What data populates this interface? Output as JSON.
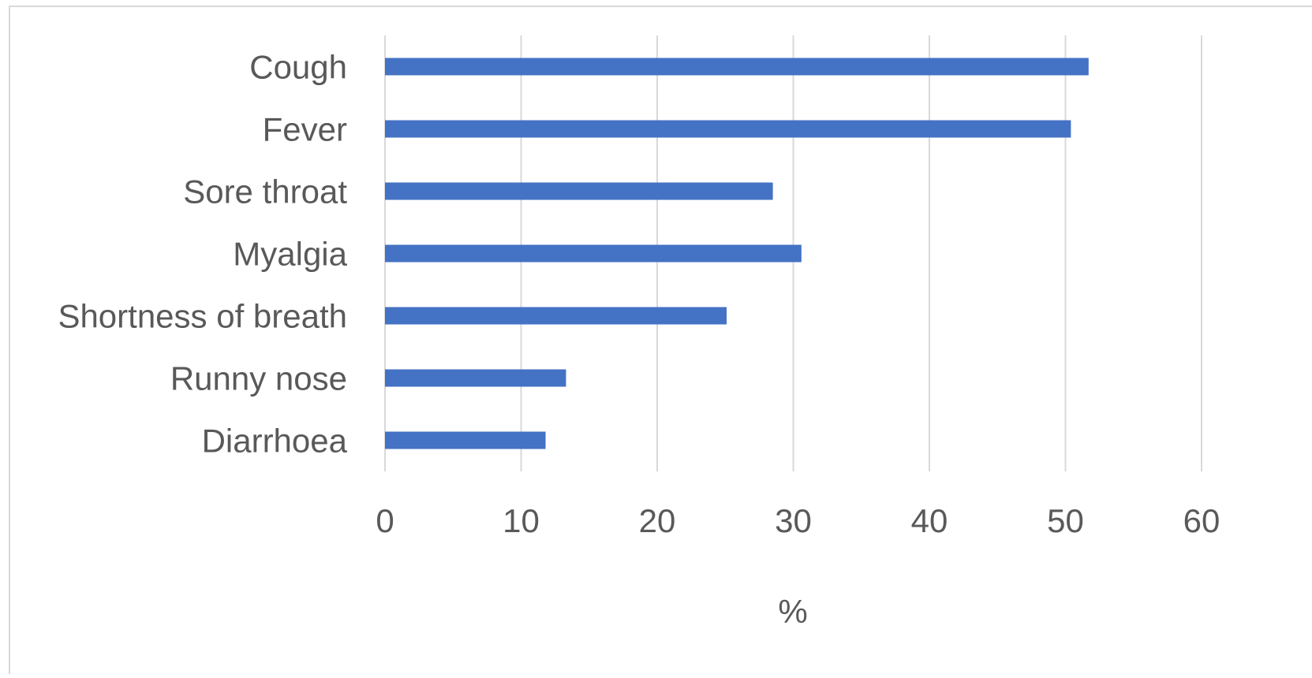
{
  "chart_data": {
    "type": "bar",
    "orientation": "horizontal",
    "categories": [
      "Cough",
      "Fever",
      "Sore throat",
      "Myalgia",
      "Shortness of breath",
      "Runny nose",
      "Diarrhoea"
    ],
    "values": [
      51.7,
      50.4,
      28.5,
      30.6,
      25.1,
      13.3,
      11.8
    ],
    "title": "",
    "xlabel": "%",
    "ylabel": "",
    "xlim": [
      0,
      60
    ],
    "xticks": [
      "0",
      "10",
      "20",
      "30",
      "40",
      "50",
      "60"
    ],
    "grid": true,
    "legend": "none",
    "bar_color": "#4472C4",
    "grid_color": "#D9D9D9",
    "text_color": "#595959"
  }
}
